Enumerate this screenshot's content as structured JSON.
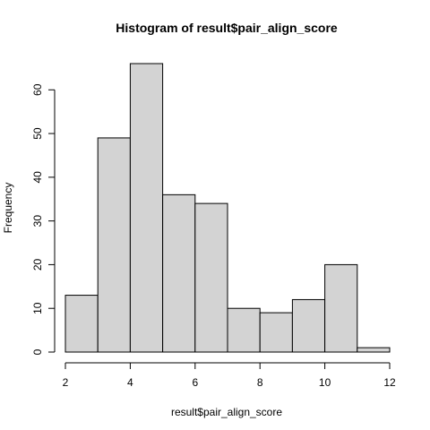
{
  "chart_data": {
    "type": "bar",
    "title": "Histogram of result$pair_align_score",
    "xlabel": "result$pair_align_score",
    "ylabel": "Frequency",
    "bins": [
      {
        "start": 2,
        "end": 3,
        "count": 13
      },
      {
        "start": 3,
        "end": 4,
        "count": 49
      },
      {
        "start": 4,
        "end": 5,
        "count": 66
      },
      {
        "start": 5,
        "end": 6,
        "count": 36
      },
      {
        "start": 6,
        "end": 7,
        "count": 34
      },
      {
        "start": 7,
        "end": 8,
        "count": 10
      },
      {
        "start": 8,
        "end": 9,
        "count": 9
      },
      {
        "start": 9,
        "end": 10,
        "count": 12
      },
      {
        "start": 10,
        "end": 11,
        "count": 20
      },
      {
        "start": 11,
        "end": 12,
        "count": 1
      }
    ],
    "xlim": [
      2,
      12
    ],
    "ylim": [
      0,
      66
    ],
    "x_ticks": [
      2,
      4,
      6,
      8,
      10,
      12
    ],
    "y_ticks": [
      0,
      10,
      20,
      30,
      40,
      50,
      60
    ],
    "grid": false,
    "bar_fill": "#d3d3d3",
    "bar_stroke": "#000000"
  }
}
